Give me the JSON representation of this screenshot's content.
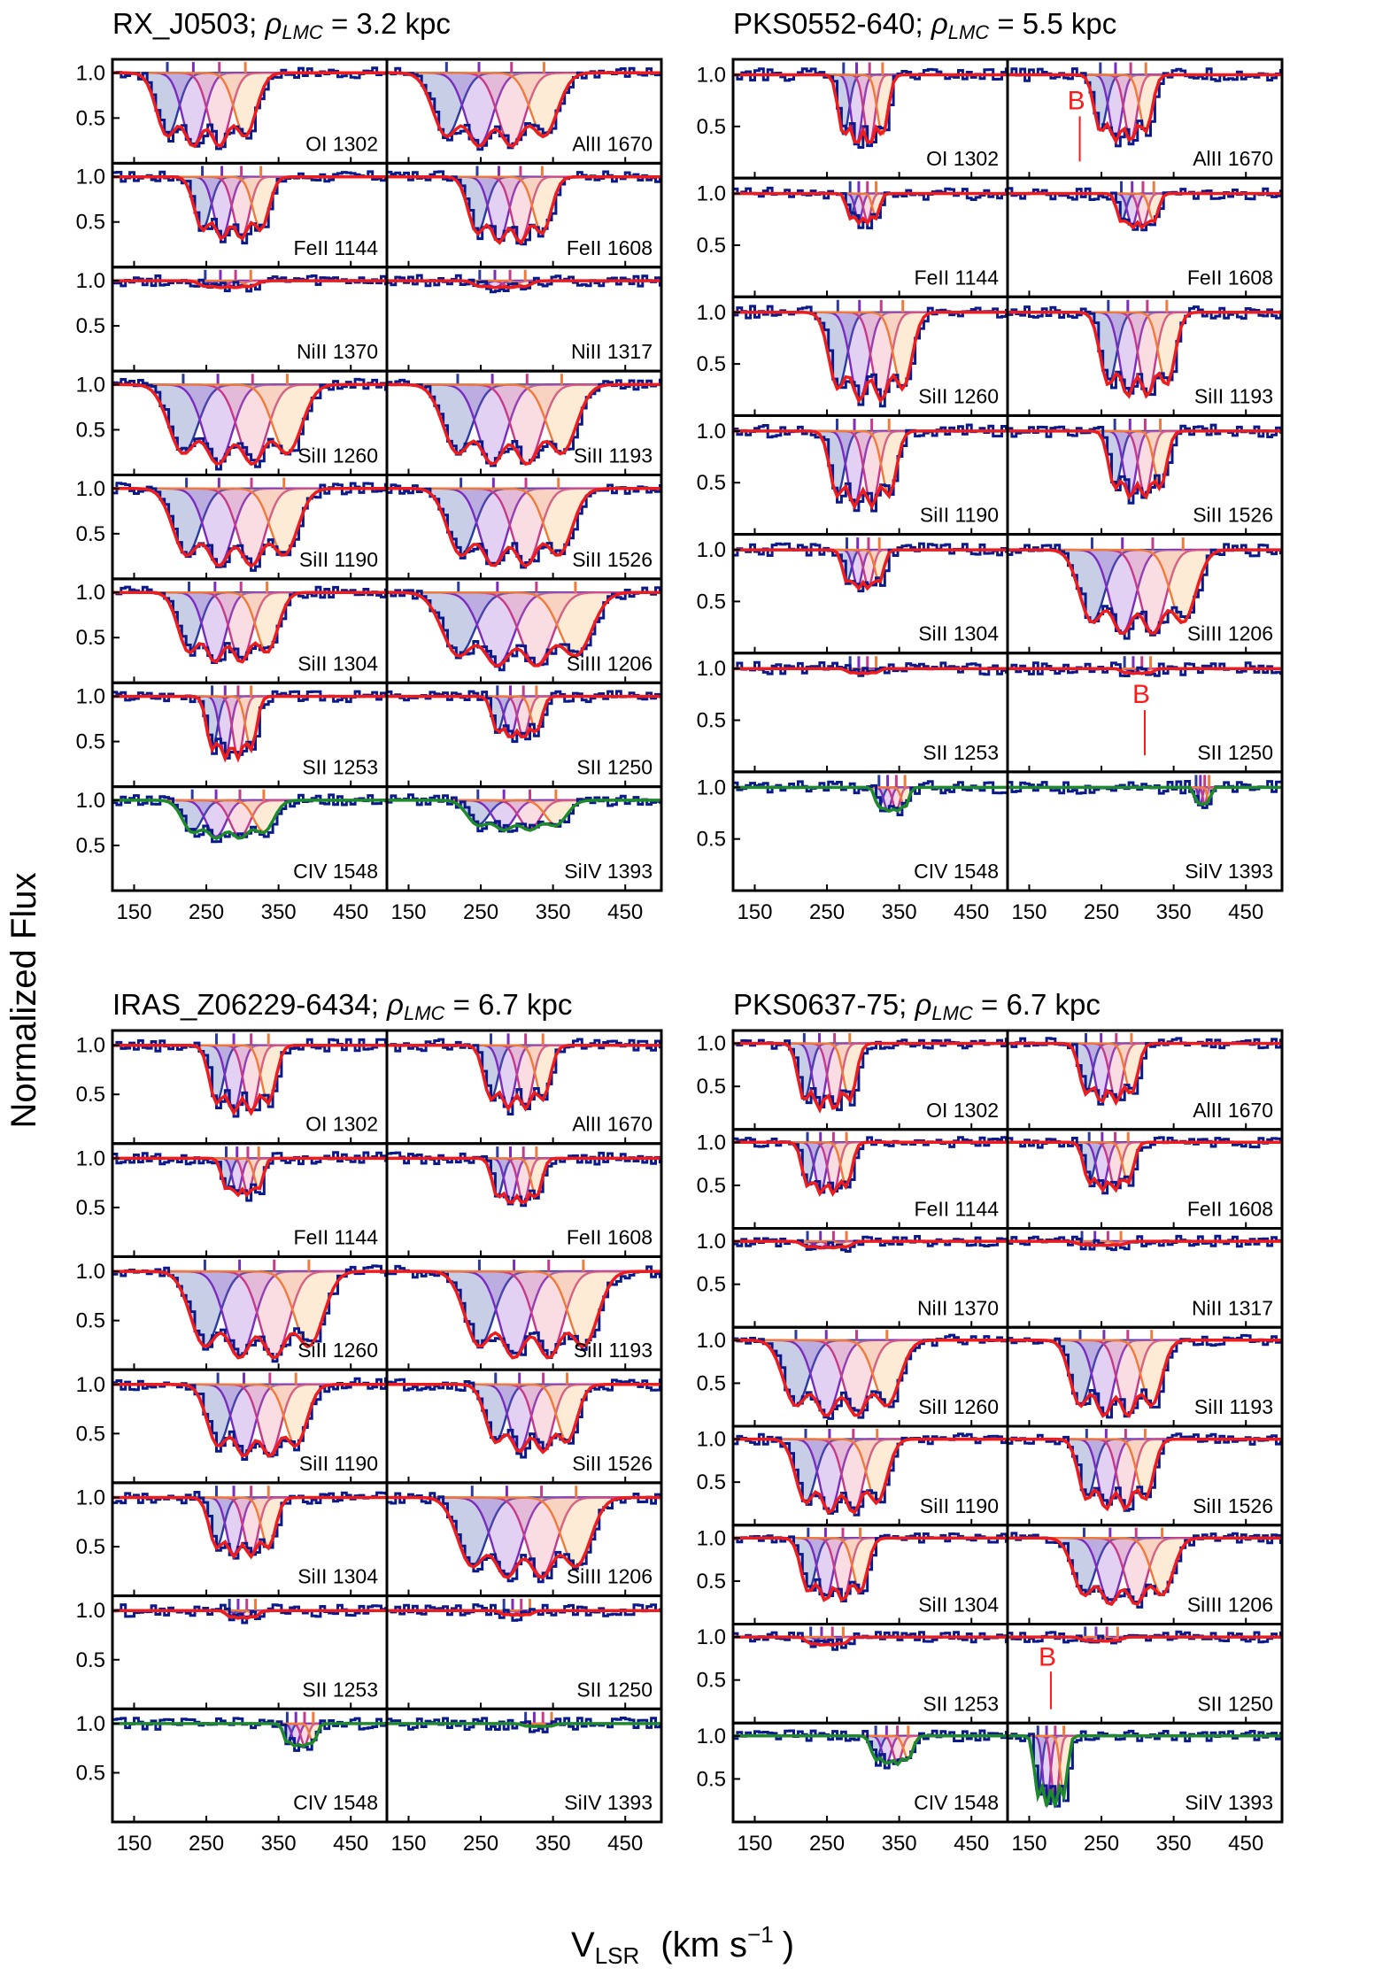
{
  "figure": {
    "ylabel": "Normalized Flux",
    "xlabel_main": "V",
    "xlabel_sub": "LSR",
    "xlabel_units": "(km s",
    "xlabel_exp": "−1",
    "xlabel_close": ")"
  },
  "chart_data": {
    "type": "line",
    "x_range": [
      120,
      500
    ],
    "x_ticks": [
      150,
      250,
      350,
      450
    ],
    "y_ticks": [
      0.5,
      1.0
    ],
    "y_range": [
      0.0,
      1.15
    ],
    "blend_marker": "B",
    "groups": [
      {
        "sightline": "RX_J0503;",
        "rho_label": "ρ",
        "rho_sub": "LMC",
        "rho_value": " =  3.2 kpc",
        "rows": [
          [
            {
              "ion": "OI 1302",
              "center": 250,
              "depth": 0.9,
              "width": 60
            },
            {
              "ion": "AlII 1670",
              "center": 270,
              "depth": 0.9,
              "width": 75
            }
          ],
          [
            {
              "ion": "FeII 1144",
              "center": 285,
              "depth": 0.75,
              "width": 45
            },
            {
              "ion": "FeII 1608",
              "center": 290,
              "depth": 0.8,
              "width": 50
            }
          ],
          [
            {
              "ion": "NiII 1370",
              "center": 280,
              "depth": 0.08,
              "width": 35
            },
            {
              "ion": "NiII 1317",
              "center": 280,
              "depth": 0.08,
              "width": 35
            }
          ],
          [
            {
              "ion": "SiII 1260",
              "center": 290,
              "depth": 0.98,
              "width": 80
            },
            {
              "ion": "SiII 1193",
              "center": 290,
              "depth": 0.98,
              "width": 80
            }
          ],
          [
            {
              "ion": "SiII 1190",
              "center": 290,
              "depth": 0.95,
              "width": 75
            },
            {
              "ion": "SiII 1526",
              "center": 290,
              "depth": 0.95,
              "width": 75
            }
          ],
          [
            {
              "ion": "SiII 1304",
              "center": 280,
              "depth": 0.85,
              "width": 60
            },
            {
              "ion": "SiIII 1206",
              "center": 300,
              "depth": 0.9,
              "width": 90
            }
          ],
          [
            {
              "ion": "SII 1253",
              "center": 285,
              "depth": 0.75,
              "width": 30
            },
            {
              "ion": "SII 1250",
              "center": 300,
              "depth": 0.5,
              "width": 30
            }
          ],
          [
            {
              "ion": "CIV 1548",
              "center": 280,
              "depth": 0.45,
              "width": 55
            },
            {
              "ion": "SiIV 1393",
              "center": 300,
              "depth": 0.35,
              "width": 60
            }
          ]
        ]
      },
      {
        "sightline": "PKS0552-640;",
        "rho_label": "ρ",
        "rho_sub": "LMC",
        "rho_value": " =  5.5 kpc",
        "rows": [
          [
            {
              "ion": "OI 1302",
              "center": 300,
              "depth": 0.75,
              "width": 30
            },
            {
              "ion": "AlII 1670",
              "center": 280,
              "depth": 0.7,
              "width": 35
            }
          ],
          [
            {
              "ion": "FeII 1144",
              "center": 300,
              "depth": 0.3,
              "width": 20
            },
            {
              "ion": "FeII 1608",
              "center": 300,
              "depth": 0.35,
              "width": 25
            }
          ],
          [
            {
              "ion": "SiII 1260",
              "center": 310,
              "depth": 0.95,
              "width": 50
            },
            {
              "ion": "SiII 1193",
              "center": 300,
              "depth": 0.9,
              "width": 45
            }
          ],
          [
            {
              "ion": "SiII 1190",
              "center": 300,
              "depth": 0.8,
              "width": 40
            },
            {
              "ion": "SiII 1526",
              "center": 300,
              "depth": 0.7,
              "width": 35
            }
          ],
          [
            {
              "ion": "SiII 1304",
              "center": 300,
              "depth": 0.4,
              "width": 25
            },
            {
              "ion": "SiIII 1206",
              "center": 300,
              "depth": 0.9,
              "width": 70
            }
          ],
          [
            {
              "ion": "SII 1253",
              "center": 300,
              "depth": 0.05,
              "width": 20
            },
            {
              "ion": "SII 1250",
              "center": 300,
              "depth": 0.05,
              "width": 20
            }
          ],
          [
            {
              "ion": "CIV 1548",
              "center": 340,
              "depth": 0.25,
              "width": 20
            },
            {
              "ion": "SiIV 1393",
              "center": 390,
              "depth": 0.2,
              "width": 10
            }
          ]
        ]
      },
      {
        "sightline": "IRAS_Z06229-6434;",
        "rho_label": "ρ",
        "rho_sub": "LMC",
        "rho_value": " =  6.7 kpc",
        "rows": [
          [
            {
              "ion": "OI 1302",
              "center": 300,
              "depth": 0.75,
              "width": 40
            },
            {
              "ion": "AlII 1670",
              "center": 300,
              "depth": 0.7,
              "width": 40
            }
          ],
          [
            {
              "ion": "FeII 1144",
              "center": 300,
              "depth": 0.4,
              "width": 25
            },
            {
              "ion": "FeII 1608",
              "center": 300,
              "depth": 0.5,
              "width": 30
            }
          ],
          [
            {
              "ion": "SiII 1260",
              "center": 320,
              "depth": 0.98,
              "width": 80
            },
            {
              "ion": "SiII 1193",
              "center": 320,
              "depth": 0.98,
              "width": 80
            }
          ],
          [
            {
              "ion": "SiII 1190",
              "center": 320,
              "depth": 0.8,
              "width": 60
            },
            {
              "ion": "SiII 1526",
              "center": 320,
              "depth": 0.75,
              "width": 55
            }
          ],
          [
            {
              "ion": "SiII 1304",
              "center": 300,
              "depth": 0.65,
              "width": 40
            },
            {
              "ion": "SiIII 1206",
              "center": 310,
              "depth": 0.9,
              "width": 80
            }
          ],
          [
            {
              "ion": "SII 1253",
              "center": 300,
              "depth": 0.08,
              "width": 20
            },
            {
              "ion": "SII 1250",
              "center": 300,
              "depth": 0.05,
              "width": 20
            }
          ],
          [
            {
              "ion": "CIV 1548",
              "center": 380,
              "depth": 0.25,
              "width": 20
            },
            {
              "ion": "SiIV 1393",
              "center": 330,
              "depth": 0.03,
              "width": 20
            }
          ]
        ]
      },
      {
        "sightline": "PKS0637-75;",
        "rho_label": "ρ",
        "rho_sub": "LMC",
        "rho_value": " =  6.7 kpc",
        "rows": [
          [
            {
              "ion": "OI 1302",
              "center": 250,
              "depth": 0.85,
              "width": 35
            },
            {
              "ion": "AlII 1670",
              "center": 260,
              "depth": 0.75,
              "width": 35
            }
          ],
          [
            {
              "ion": "FeII 1144",
              "center": 250,
              "depth": 0.65,
              "width": 30
            },
            {
              "ion": "FeII 1608",
              "center": 260,
              "depth": 0.6,
              "width": 30
            }
          ],
          [
            {
              "ion": "NiII 1370",
              "center": 250,
              "depth": 0.08,
              "width": 30
            },
            {
              "ion": "NiII 1317",
              "center": 250,
              "depth": 0.05,
              "width": 30
            }
          ],
          [
            {
              "ion": "SiII 1260",
              "center": 270,
              "depth": 0.98,
              "width": 70
            },
            {
              "ion": "SiII 1193",
              "center": 270,
              "depth": 0.98,
              "width": 55
            }
          ],
          [
            {
              "ion": "SiII 1190",
              "center": 270,
              "depth": 0.95,
              "width": 55
            },
            {
              "ion": "SiII 1526",
              "center": 270,
              "depth": 0.9,
              "width": 45
            }
          ],
          [
            {
              "ion": "SiII 1304",
              "center": 260,
              "depth": 0.8,
              "width": 40
            },
            {
              "ion": "SiIII 1206",
              "center": 280,
              "depth": 0.85,
              "width": 60
            }
          ],
          [
            {
              "ion": "SII 1253",
              "center": 250,
              "depth": 0.1,
              "width": 25
            },
            {
              "ion": "SII 1250",
              "center": 250,
              "depth": 0.05,
              "width": 25
            }
          ],
          [
            {
              "ion": "CIV 1548",
              "center": 340,
              "depth": 0.35,
              "width": 25
            },
            {
              "ion": "SiIV 1393",
              "center": 180,
              "depth": 0.9,
              "width": 20
            }
          ]
        ]
      }
    ],
    "blend_annotations": [
      {
        "group": 1,
        "row": 0,
        "col": 1,
        "v": 220
      },
      {
        "group": 1,
        "row": 5,
        "col": 1,
        "v": 310
      },
      {
        "group": 3,
        "row": 6,
        "col": 1,
        "v": 180
      }
    ]
  }
}
